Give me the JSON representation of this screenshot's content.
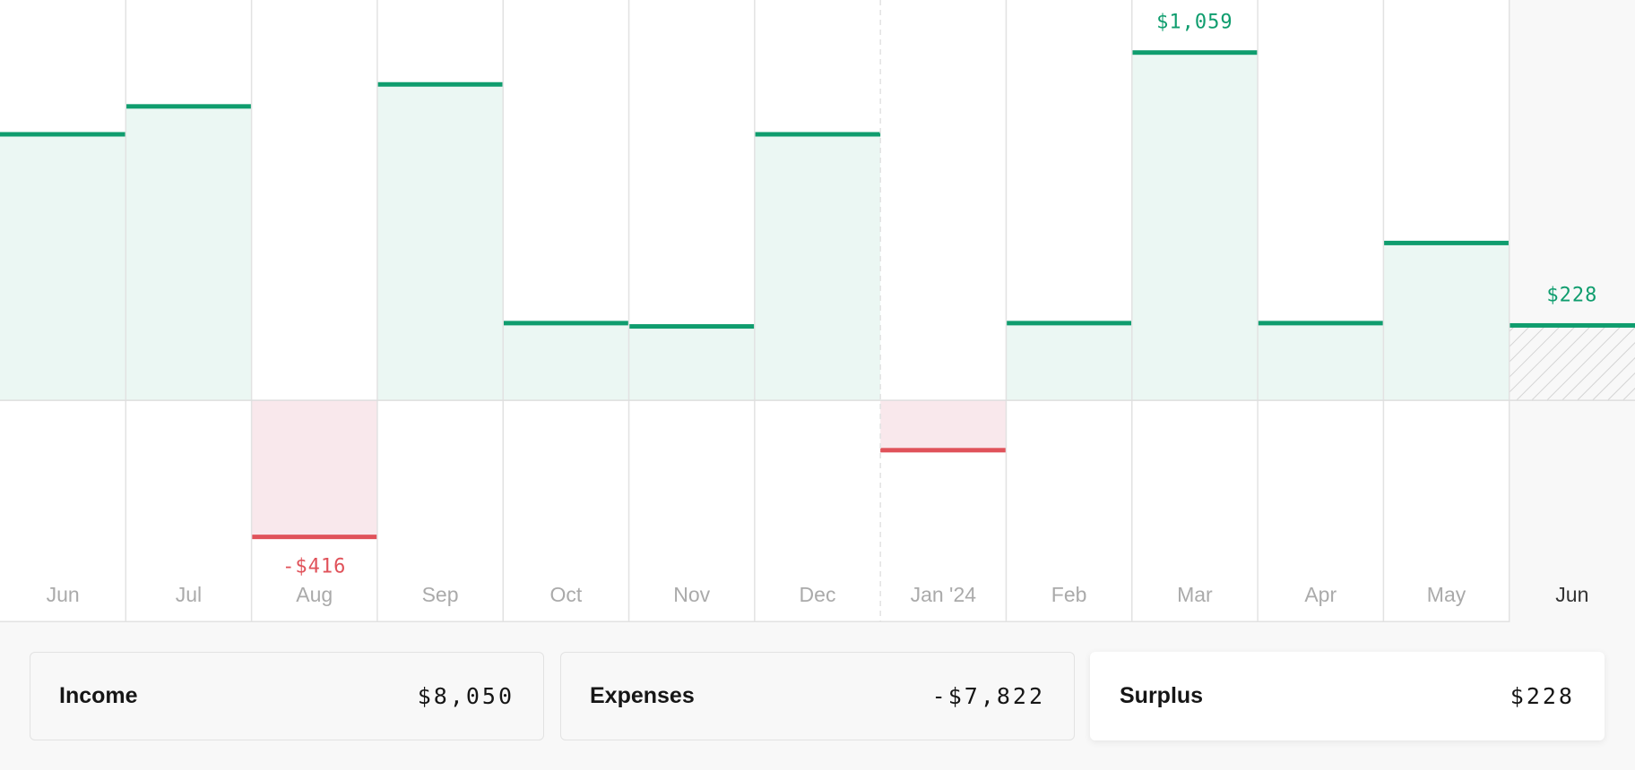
{
  "chart_data": {
    "type": "bar",
    "categories": [
      "Jun",
      "Jul",
      "Aug",
      "Sep",
      "Oct",
      "Nov",
      "Dec",
      "Jan '24",
      "Feb",
      "Mar",
      "Apr",
      "May",
      "Jun"
    ],
    "values": [
      810,
      895,
      -416,
      962,
      235,
      225,
      810,
      -152,
      235,
      1059,
      235,
      479,
      228
    ],
    "value_labels": [
      null,
      null,
      "-$416",
      null,
      null,
      null,
      null,
      null,
      null,
      "$1,059",
      null,
      null,
      "$228"
    ],
    "positive_color": "#0f9d6e",
    "negative_color": "#e0525a",
    "ylim": [
      -676,
      1219
    ]
  },
  "summary": [
    {
      "label": "Income",
      "value": "$8,050"
    },
    {
      "label": "Expenses",
      "value": "-$7,822"
    },
    {
      "label": "Surplus",
      "value": "$228"
    }
  ]
}
